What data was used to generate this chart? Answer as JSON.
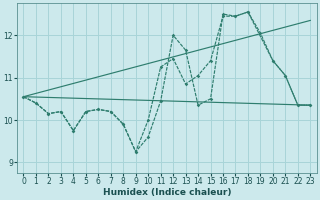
{
  "xlabel": "Humidex (Indice chaleur)",
  "xlim": [
    -0.5,
    23.5
  ],
  "ylim": [
    8.75,
    12.75
  ],
  "yticks": [
    9,
    10,
    11,
    12
  ],
  "xticks": [
    0,
    1,
    2,
    3,
    4,
    5,
    6,
    7,
    8,
    9,
    10,
    11,
    12,
    13,
    14,
    15,
    16,
    17,
    18,
    19,
    20,
    21,
    22,
    23
  ],
  "bg_color": "#cce9ec",
  "grid_color": "#a8d4d8",
  "line_color": "#2e7d6e",
  "lines": [
    {
      "x": [
        0,
        1,
        2,
        3,
        4,
        5,
        6,
        7,
        8,
        9,
        10,
        11,
        12,
        13,
        14,
        15,
        16,
        17,
        18,
        19,
        20,
        21,
        22,
        23
      ],
      "y": [
        10.55,
        10.4,
        10.15,
        10.2,
        9.75,
        10.2,
        10.25,
        10.2,
        9.9,
        9.25,
        9.6,
        10.45,
        12.0,
        11.65,
        10.35,
        10.5,
        12.5,
        12.45,
        12.55,
        12.05,
        11.4,
        11.05,
        10.35,
        10.35
      ],
      "marker": true
    },
    {
      "x": [
        0,
        1,
        2,
        3,
        4,
        5,
        6,
        7,
        8,
        9,
        10,
        11,
        12,
        13,
        14,
        15,
        16,
        17,
        18,
        20,
        21,
        22,
        23
      ],
      "y": [
        10.55,
        10.4,
        10.15,
        10.2,
        9.75,
        10.2,
        10.25,
        10.2,
        9.9,
        9.25,
        10.0,
        11.25,
        11.45,
        10.85,
        11.05,
        11.4,
        12.45,
        12.45,
        12.55,
        11.4,
        11.05,
        10.35,
        10.35
      ],
      "marker": true
    },
    {
      "x": [
        0,
        23
      ],
      "y": [
        10.55,
        12.35
      ],
      "marker": false
    },
    {
      "x": [
        0,
        23
      ],
      "y": [
        10.55,
        10.35
      ],
      "marker": false
    }
  ]
}
